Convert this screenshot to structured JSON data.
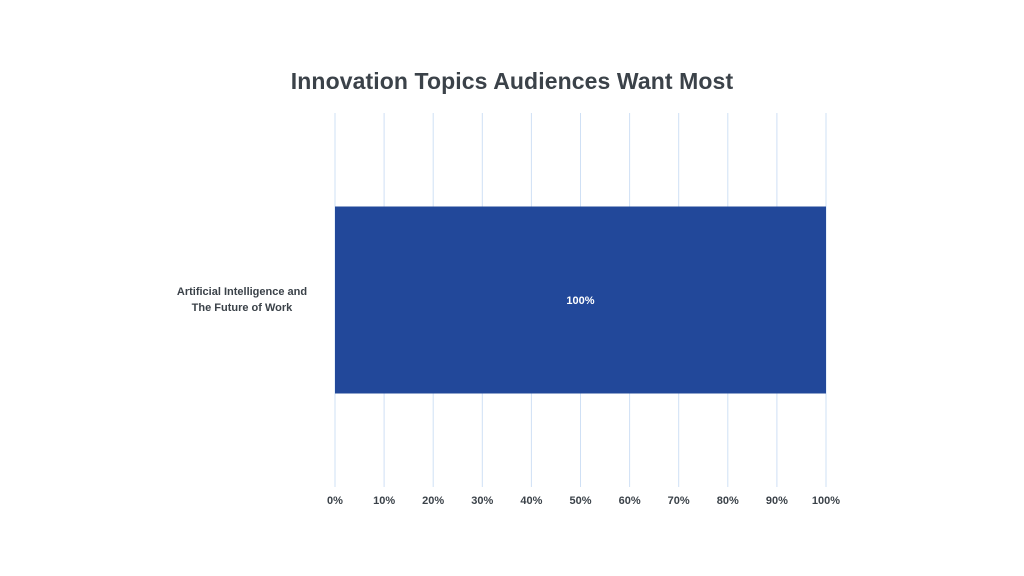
{
  "chart_data": {
    "type": "bar",
    "orientation": "horizontal",
    "title": "Innovation Topics Audiences Want Most",
    "categories": [
      "Artificial Intelligence and\nThe Future of Work"
    ],
    "values": [
      100
    ],
    "data_labels": [
      "100%"
    ],
    "x_ticks": [
      "0%",
      "10%",
      "20%",
      "30%",
      "40%",
      "50%",
      "60%",
      "70%",
      "80%",
      "90%",
      "100%"
    ],
    "xlim": [
      0,
      100
    ],
    "xlabel": "",
    "ylabel": "",
    "grid": "vertical",
    "legend": "none",
    "colors": {
      "bar": "#22489a",
      "grid": "#cfe0f5",
      "text": "#3b4249",
      "data_label": "#ffffff"
    }
  }
}
